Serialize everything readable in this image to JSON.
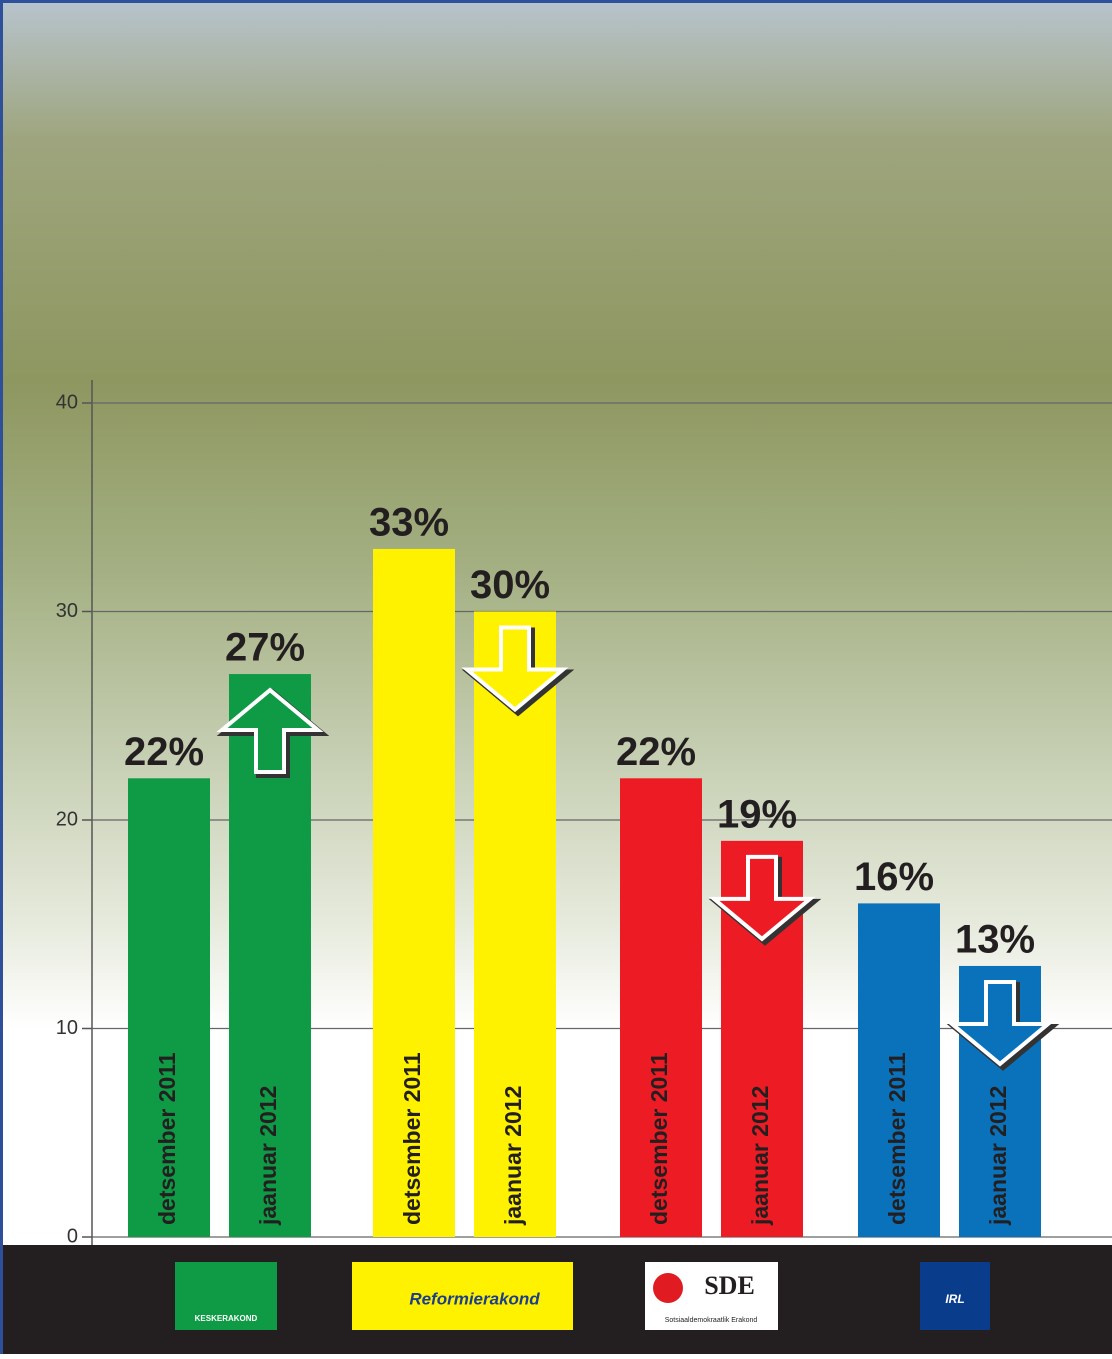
{
  "chart_data": {
    "type": "bar",
    "categories": [
      "KESKERAKOND",
      "Reformierakond",
      "SDE",
      "IRL"
    ],
    "category_colors": [
      "#0f9a45",
      "#fff200",
      "#ed1c24",
      "#0a72bb"
    ],
    "logo_subtitle": "Sotsiaaldemokraatlik Erakond",
    "series": [
      {
        "name": "detsember 2011",
        "values": [
          22,
          33,
          22,
          16
        ],
        "value_labels": [
          "22%",
          "33%",
          "22%",
          "16%"
        ]
      },
      {
        "name": "jaanuar 2012",
        "values": [
          27,
          30,
          19,
          13
        ],
        "value_labels": [
          "27%",
          "30%",
          "19%",
          "13%"
        ]
      }
    ],
    "ylim": [
      0,
      40
    ],
    "yticks": [
      0,
      10,
      20,
      30,
      40
    ],
    "grid": true
  }
}
